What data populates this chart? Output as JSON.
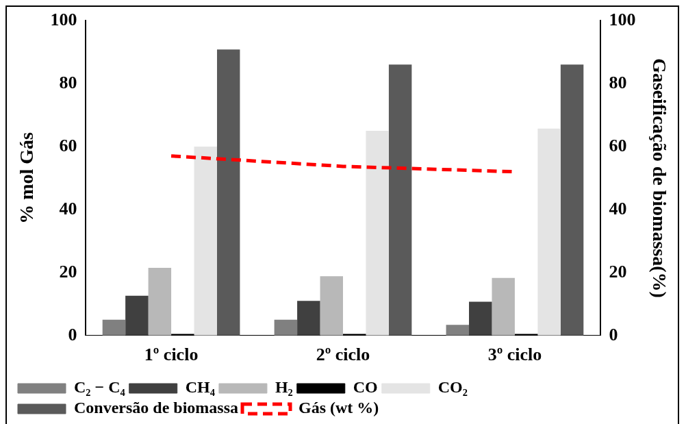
{
  "chart_data": {
    "type": "bar",
    "ylabel": "% mol Gás",
    "y2label": "Gaseificação de biomassa(%)",
    "categories": [
      "1º ciclo",
      "2º ciclo",
      "3º ciclo"
    ],
    "series": [
      {
        "name": "C₂ − C₄",
        "color": "#808080",
        "values": [
          5,
          5,
          3.4
        ]
      },
      {
        "name": "CH₄",
        "color": "#404040",
        "values": [
          12.6,
          11,
          10.7
        ]
      },
      {
        "name": "H₂",
        "color": "#b8b8b8",
        "values": [
          21.5,
          18.8,
          18.3
        ]
      },
      {
        "name": "CO",
        "color": "#000000",
        "values": [
          0.5,
          0.5,
          0.5
        ]
      },
      {
        "name": "CO₂",
        "color": "#e4e4e4",
        "values": [
          60,
          65,
          65.7
        ]
      },
      {
        "name": "Conversão de biomassa",
        "color": "#5a5a5a",
        "values": [
          90.8,
          86,
          86
        ]
      },
      {
        "name": "Gás (wt %)",
        "type": "line",
        "color": "#ff0000",
        "values": [
          57,
          53.7,
          52
        ],
        "line_style": "dashed",
        "marker": "none"
      }
    ],
    "ylim": [
      0,
      100
    ],
    "yticks": [
      0,
      20,
      40,
      60,
      80,
      100
    ],
    "y2lim": [
      0,
      100
    ],
    "y2ticks": [
      0,
      20,
      40,
      60,
      80,
      100
    ],
    "grid": false,
    "legend": "bottom"
  }
}
